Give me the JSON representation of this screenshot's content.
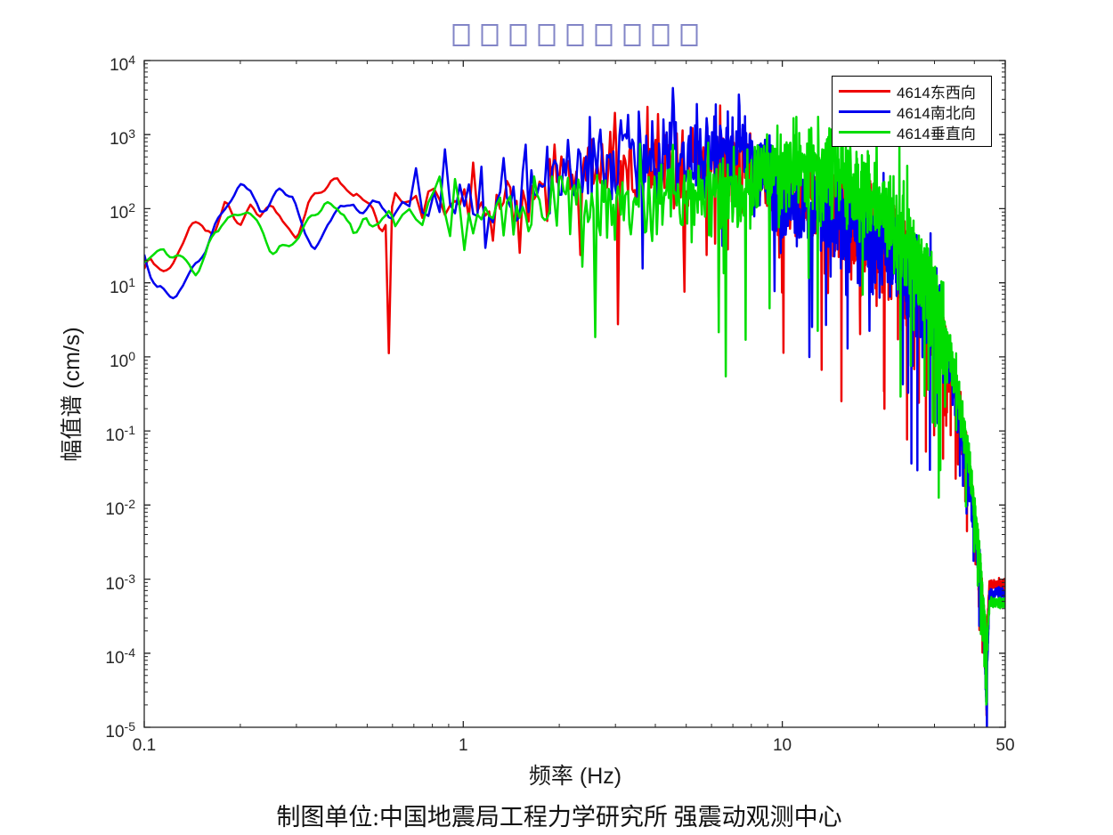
{
  "window": {
    "background": "#ffffff"
  },
  "title": {
    "glyphs": "□□□□□□□□□",
    "box_count": 9,
    "color": "#8285c7"
  },
  "caption": "制图单位:中国地震局工程力学研究所 强震动观测中心",
  "chart_data": {
    "type": "line",
    "title": "□□□□□□□□□",
    "xlabel": "频率 (Hz)",
    "ylabel": "幅值谱 (cm/s)",
    "x_scale": "log",
    "y_scale": "log",
    "xlim": [
      0.1,
      50
    ],
    "ylim": [
      1e-05,
      10000.0
    ],
    "grid": false,
    "axis_color": "#262626",
    "x_ticks": [
      {
        "value": 0.1,
        "label": "0.1"
      },
      {
        "value": 1,
        "label": "1"
      },
      {
        "value": 10,
        "label": "10"
      },
      {
        "value": 50,
        "label": "50"
      }
    ],
    "y_tick_exponents": [
      4,
      3,
      2,
      1,
      0,
      -1,
      -2,
      -3,
      -4,
      -5
    ],
    "legend_position": "top-right",
    "sampling": {
      "log_until": 0.6,
      "log_step": 1.0235,
      "lin_step": 0.033
    },
    "noise": {
      "sigma_bands": [
        [
          0.45,
          0.1
        ],
        [
          1,
          0.22
        ],
        [
          32,
          0.3
        ],
        [
          44,
          0.12
        ],
        [
          999,
          0.03
        ]
      ]
    },
    "series": [
      {
        "name": "4614东西向",
        "color": "#ee0000",
        "seed": 13,
        "spike_prob": 0.028,
        "anchors": [
          [
            0.1,
            18
          ],
          [
            0.115,
            14
          ],
          [
            0.13,
            30
          ],
          [
            0.15,
            80
          ],
          [
            0.165,
            40
          ],
          [
            0.18,
            110
          ],
          [
            0.2,
            60
          ],
          [
            0.215,
            120
          ],
          [
            0.23,
            70
          ],
          [
            0.25,
            130
          ],
          [
            0.27,
            60
          ],
          [
            0.3,
            35
          ],
          [
            0.33,
            120
          ],
          [
            0.36,
            160
          ],
          [
            0.4,
            200
          ],
          [
            0.45,
            120
          ],
          [
            0.5,
            160
          ],
          [
            0.55,
            60
          ],
          [
            0.62,
            120
          ],
          [
            0.7,
            100
          ],
          [
            0.8,
            130
          ],
          [
            0.9,
            90
          ],
          [
            1,
            120
          ],
          [
            1.2,
            100
          ],
          [
            1.5,
            140
          ],
          [
            1.8,
            180
          ],
          [
            2.2,
            250
          ],
          [
            2.6,
            300
          ],
          [
            3,
            330
          ],
          [
            3.5,
            380
          ],
          [
            4,
            420
          ],
          [
            4.5,
            350
          ],
          [
            5,
            400
          ],
          [
            5.5,
            350
          ],
          [
            6,
            420
          ],
          [
            6.5,
            380
          ],
          [
            7,
            450
          ],
          [
            7.5,
            400
          ],
          [
            8,
            320
          ],
          [
            8.5,
            250
          ],
          [
            9,
            180
          ],
          [
            10,
            130
          ],
          [
            11,
            110
          ],
          [
            12,
            120
          ],
          [
            13,
            100
          ],
          [
            15,
            80
          ],
          [
            17,
            60
          ],
          [
            19,
            45
          ],
          [
            21,
            35
          ],
          [
            24,
            18
          ],
          [
            27,
            9
          ],
          [
            30,
            4.5
          ],
          [
            32,
            2
          ],
          [
            34,
            0.7
          ],
          [
            36,
            0.18
          ],
          [
            38,
            0.04
          ],
          [
            40,
            0.008
          ],
          [
            41.5,
            0.0015
          ],
          [
            42.8,
            0.0003
          ],
          [
            43.6,
            0.00012
          ],
          [
            44.6,
            0.00085
          ],
          [
            47,
            0.00085
          ],
          [
            50,
            0.00085
          ]
        ]
      },
      {
        "name": "4614南北向",
        "color": "#0000ee",
        "seed": 47,
        "spike_prob": 0.02,
        "anchors": [
          [
            0.1,
            20
          ],
          [
            0.11,
            10
          ],
          [
            0.125,
            6
          ],
          [
            0.14,
            12
          ],
          [
            0.155,
            30
          ],
          [
            0.17,
            70
          ],
          [
            0.185,
            140
          ],
          [
            0.2,
            170
          ],
          [
            0.215,
            150
          ],
          [
            0.23,
            110
          ],
          [
            0.25,
            150
          ],
          [
            0.27,
            170
          ],
          [
            0.29,
            150
          ],
          [
            0.31,
            60
          ],
          [
            0.34,
            25
          ],
          [
            0.37,
            45
          ],
          [
            0.4,
            90
          ],
          [
            0.45,
            130
          ],
          [
            0.5,
            110
          ],
          [
            0.55,
            140
          ],
          [
            0.6,
            100
          ],
          [
            0.65,
            150
          ],
          [
            0.7,
            160
          ],
          [
            0.75,
            120
          ],
          [
            0.8,
            150
          ],
          [
            0.9,
            120
          ],
          [
            1,
            170
          ],
          [
            1.1,
            140
          ],
          [
            1.2,
            110
          ],
          [
            1.4,
            160
          ],
          [
            1.6,
            200
          ],
          [
            1.8,
            240
          ],
          [
            2,
            280
          ],
          [
            2.3,
            350
          ],
          [
            2.6,
            420
          ],
          [
            3,
            520
          ],
          [
            3.4,
            650
          ],
          [
            3.7,
            550
          ],
          [
            4,
            600
          ],
          [
            4.4,
            520
          ],
          [
            4.8,
            580
          ],
          [
            5.2,
            500
          ],
          [
            5.6,
            620
          ],
          [
            6,
            680
          ],
          [
            6.5,
            600
          ],
          [
            7,
            650
          ],
          [
            7.5,
            580
          ],
          [
            8,
            520
          ],
          [
            8.5,
            400
          ],
          [
            9,
            280
          ],
          [
            9.5,
            180
          ],
          [
            10,
            130
          ],
          [
            11,
            100
          ],
          [
            12,
            90
          ],
          [
            13,
            85
          ],
          [
            15,
            70
          ],
          [
            17,
            55
          ],
          [
            19,
            40
          ],
          [
            21,
            30
          ],
          [
            24,
            15
          ],
          [
            27,
            8
          ],
          [
            30,
            4
          ],
          [
            32,
            1.7
          ],
          [
            34,
            0.6
          ],
          [
            36,
            0.15
          ],
          [
            38,
            0.03
          ],
          [
            40,
            0.006
          ],
          [
            41.5,
            0.0012
          ],
          [
            42.8,
            0.0002
          ],
          [
            43.6,
            2.5e-05
          ],
          [
            44.6,
            0.0006
          ],
          [
            47,
            0.00065
          ],
          [
            50,
            0.00065
          ]
        ]
      },
      {
        "name": "4614垂直向",
        "color": "#00dd00",
        "seed": 81,
        "spike_prob": 0.03,
        "anchors": [
          [
            0.1,
            20
          ],
          [
            0.115,
            26
          ],
          [
            0.13,
            20
          ],
          [
            0.145,
            15
          ],
          [
            0.16,
            30
          ],
          [
            0.175,
            60
          ],
          [
            0.19,
            95
          ],
          [
            0.21,
            100
          ],
          [
            0.23,
            60
          ],
          [
            0.25,
            35
          ],
          [
            0.28,
            28
          ],
          [
            0.31,
            45
          ],
          [
            0.34,
            80
          ],
          [
            0.37,
            100
          ],
          [
            0.4,
            85
          ],
          [
            0.45,
            70
          ],
          [
            0.5,
            100
          ],
          [
            0.55,
            80
          ],
          [
            0.6,
            95
          ],
          [
            0.7,
            80
          ],
          [
            0.8,
            100
          ],
          [
            0.9,
            85
          ],
          [
            1,
            95
          ],
          [
            1.2,
            85
          ],
          [
            1.5,
            105
          ],
          [
            1.8,
            95
          ],
          [
            2.2,
            120
          ],
          [
            2.6,
            130
          ],
          [
            3,
            140
          ],
          [
            3.5,
            130
          ],
          [
            4,
            150
          ],
          [
            4.5,
            140
          ],
          [
            5,
            150
          ],
          [
            5.5,
            160
          ],
          [
            6,
            170
          ],
          [
            6.5,
            160
          ],
          [
            7,
            190
          ],
          [
            7.5,
            210
          ],
          [
            8,
            240
          ],
          [
            8.5,
            270
          ],
          [
            9,
            300
          ],
          [
            9.5,
            330
          ],
          [
            10,
            360
          ],
          [
            10.5,
            390
          ],
          [
            11,
            410
          ],
          [
            11.5,
            420
          ],
          [
            12,
            400
          ],
          [
            13,
            360
          ],
          [
            14,
            320
          ],
          [
            15,
            280
          ],
          [
            16,
            240
          ],
          [
            17,
            210
          ],
          [
            18,
            170
          ],
          [
            19,
            140
          ],
          [
            20,
            110
          ],
          [
            21,
            85
          ],
          [
            22,
            65
          ],
          [
            24,
            38
          ],
          [
            26,
            20
          ],
          [
            28,
            11
          ],
          [
            30,
            5.5
          ],
          [
            32,
            2.5
          ],
          [
            34,
            0.9
          ],
          [
            36,
            0.25
          ],
          [
            38,
            0.055
          ],
          [
            40,
            0.011
          ],
          [
            41.5,
            0.002
          ],
          [
            42.8,
            0.0004
          ],
          [
            43.6,
            0.0001
          ],
          [
            44.6,
            0.00048
          ],
          [
            47,
            0.00048
          ],
          [
            50,
            0.00048
          ]
        ]
      }
    ]
  }
}
